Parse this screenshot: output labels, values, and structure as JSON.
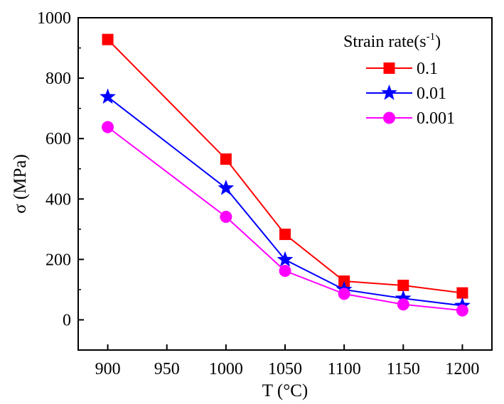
{
  "chart_data": {
    "type": "line",
    "title": "",
    "xlabel": "T (°C)",
    "ylabel": "σ (MPa)",
    "xlim": [
      875,
      1225
    ],
    "ylim": [
      -100,
      1000
    ],
    "x_ticks": [
      900,
      950,
      1000,
      1050,
      1100,
      1150,
      1200
    ],
    "y_ticks": [
      0,
      200,
      400,
      600,
      800,
      1000
    ],
    "x": [
      900,
      1000,
      1050,
      1100,
      1150,
      1200
    ],
    "legend": {
      "title_main": "Strain rate(s",
      "title_sup": "-1",
      "title_end": ")",
      "position": "top-right"
    },
    "grid": false,
    "series": [
      {
        "name": "0.1",
        "color": "#ff0000",
        "marker": "square",
        "values": [
          928,
          532,
          283,
          128,
          114,
          89
        ]
      },
      {
        "name": "0.01",
        "color": "#0000ff",
        "marker": "star",
        "values": [
          738,
          436,
          199,
          100,
          71,
          47
        ]
      },
      {
        "name": "0.001",
        "color": "#ff00ff",
        "marker": "circle",
        "values": [
          638,
          341,
          162,
          86,
          51,
          31
        ]
      }
    ]
  }
}
